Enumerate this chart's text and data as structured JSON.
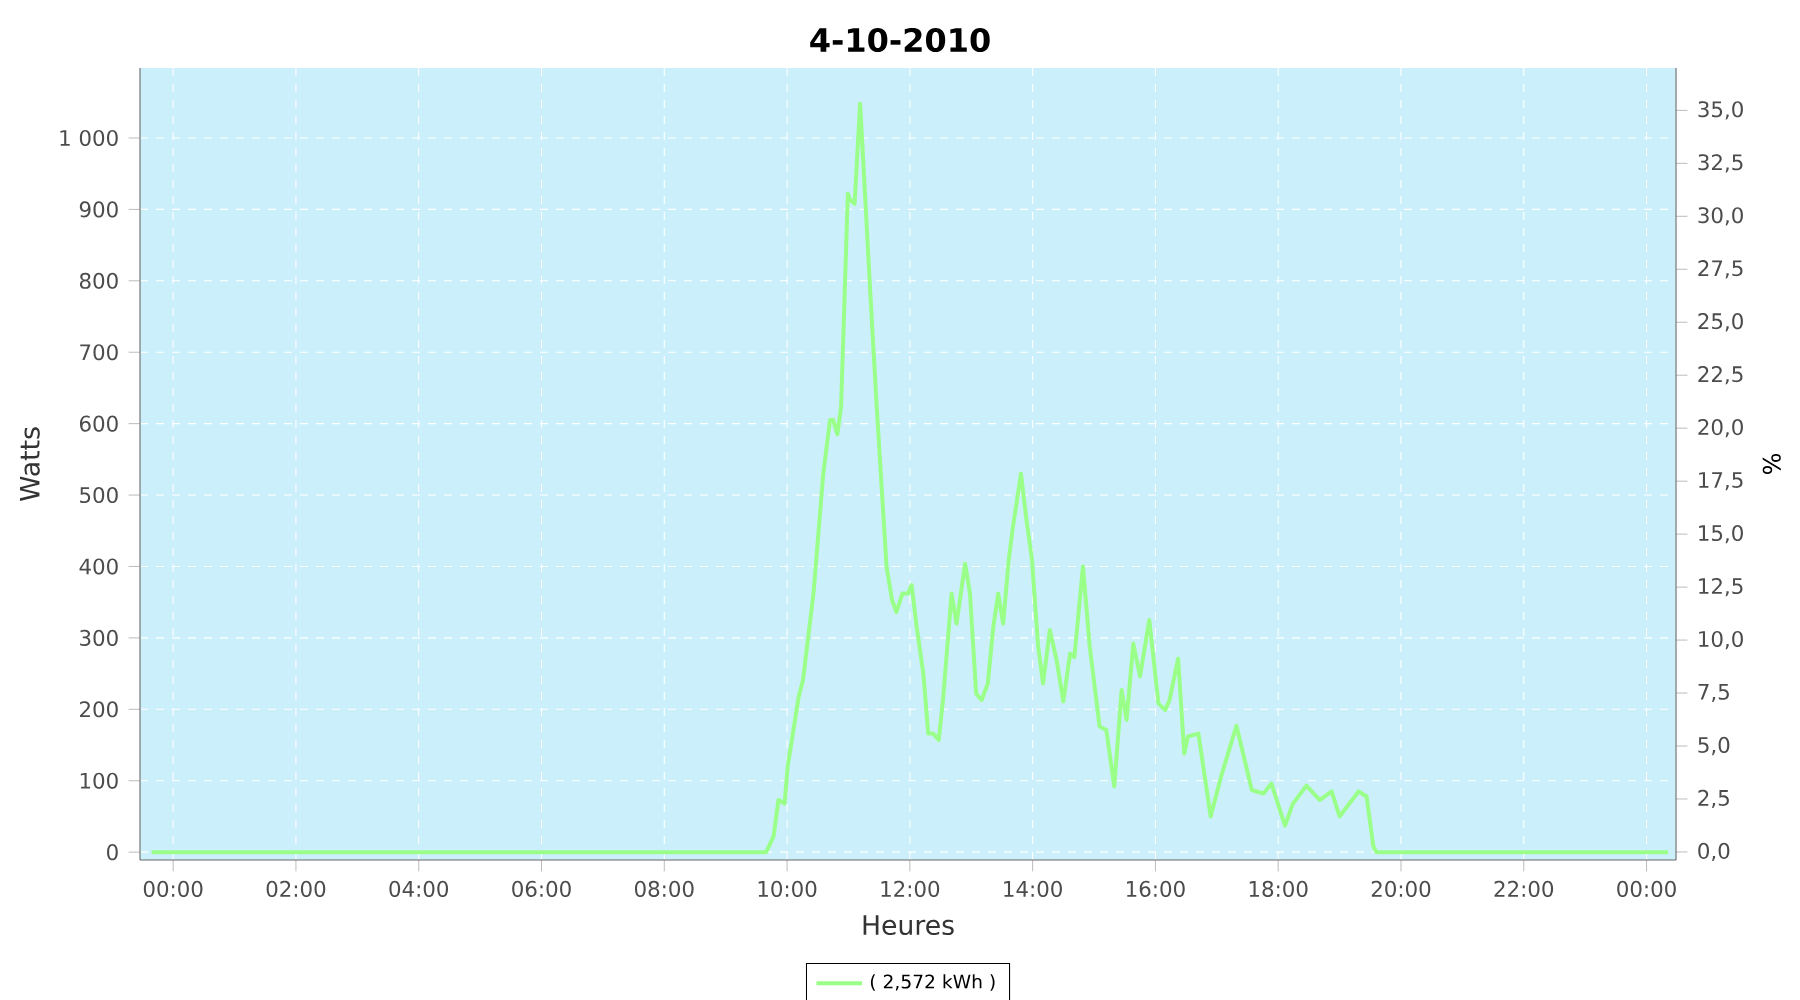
{
  "chart_data": {
    "type": "line",
    "title": "4-10-2010",
    "xlabel": "Heures",
    "ylabel": "Watts",
    "y2label": "%",
    "x": [
      -0.35,
      9.66,
      9.78,
      9.86,
      9.96,
      10.01,
      10.19,
      10.26,
      10.43,
      10.59,
      10.7,
      10.75,
      10.82,
      10.88,
      10.99,
      11.03,
      11.1,
      11.19,
      11.24,
      11.35,
      11.46,
      11.54,
      11.62,
      11.71,
      11.78,
      11.88,
      11.97,
      12.03,
      12.11,
      12.22,
      12.3,
      12.38,
      12.47,
      12.54,
      12.68,
      12.76,
      12.9,
      12.98,
      13.08,
      13.17,
      13.27,
      13.36,
      13.44,
      13.52,
      13.61,
      13.68,
      13.81,
      13.9,
      13.99,
      14.09,
      14.17,
      14.28,
      14.39,
      14.5,
      14.61,
      14.68,
      14.82,
      14.93,
      15.09,
      15.2,
      15.33,
      15.45,
      15.53,
      15.64,
      15.75,
      15.9,
      16.05,
      16.16,
      16.23,
      16.37,
      16.47,
      16.53,
      16.7,
      16.9,
      17.07,
      17.32,
      17.57,
      17.76,
      17.89,
      18.11,
      18.24,
      18.46,
      18.68,
      18.87,
      19.0,
      19.16,
      19.31,
      19.44,
      19.55,
      19.6,
      24.35
    ],
    "series": [
      {
        "name": "( 2,572 kWh )",
        "color": "#99ff88",
        "values": [
          0,
          0,
          22,
          73,
          68,
          120,
          218,
          241,
          362,
          530,
          605,
          605,
          585,
          624,
          922,
          913,
          908,
          1048,
          969,
          792,
          624,
          512,
          400,
          353,
          336,
          362,
          362,
          374,
          316,
          250,
          166,
          166,
          157,
          213,
          362,
          320,
          404,
          362,
          222,
          213,
          236,
          316,
          362,
          320,
          409,
          456,
          530,
          465,
          409,
          288,
          236,
          311,
          269,
          211,
          278,
          273,
          400,
          288,
          176,
          171,
          92,
          227,
          185,
          292,
          246,
          325,
          208,
          199,
          213,
          271,
          138,
          162,
          166,
          50,
          106,
          177,
          87,
          82,
          96,
          37,
          68,
          93,
          73,
          85,
          50,
          68,
          85,
          78,
          8,
          0,
          0
        ]
      }
    ],
    "xlim": [
      -0.54,
      24.48
    ],
    "xticks": [
      {
        "value": 0,
        "label": "00:00"
      },
      {
        "value": 2,
        "label": "02:00"
      },
      {
        "value": 4,
        "label": "04:00"
      },
      {
        "value": 6,
        "label": "06:00"
      },
      {
        "value": 8,
        "label": "08:00"
      },
      {
        "value": 10,
        "label": "10:00"
      },
      {
        "value": 12,
        "label": "12:00"
      },
      {
        "value": 14,
        "label": "14:00"
      },
      {
        "value": 16,
        "label": "16:00"
      },
      {
        "value": 18,
        "label": "18:00"
      },
      {
        "value": 20,
        "label": "20:00"
      },
      {
        "value": 22,
        "label": "22:00"
      },
      {
        "value": 24,
        "label": "00:00"
      }
    ],
    "ylim": [
      -11,
      1098
    ],
    "yticks": [
      0,
      100,
      200,
      300,
      400,
      500,
      600,
      700,
      800,
      900,
      {
        "value": 1000,
        "label": "1 000"
      }
    ],
    "y2lim": [
      -0.38,
      37.0
    ],
    "y2ticks": [
      {
        "value": 0,
        "label": "0,0"
      },
      {
        "value": 2.5,
        "label": "2,5"
      },
      {
        "value": 5,
        "label": "5,0"
      },
      {
        "value": 7.5,
        "label": "7,5"
      },
      {
        "value": 10,
        "label": "10,0"
      },
      {
        "value": 12.5,
        "label": "12,5"
      },
      {
        "value": 15,
        "label": "15,0"
      },
      {
        "value": 17.5,
        "label": "17,5"
      },
      {
        "value": 20,
        "label": "20,0"
      },
      {
        "value": 22.5,
        "label": "22,5"
      },
      {
        "value": 25,
        "label": "25,0"
      },
      {
        "value": 27.5,
        "label": "27,5"
      },
      {
        "value": 30,
        "label": "30,0"
      },
      {
        "value": 32.5,
        "label": "32,5"
      },
      {
        "value": 35,
        "label": "35,0"
      }
    ],
    "grid": true,
    "legend": "bottom",
    "marker": "none",
    "line_style": "solid"
  }
}
